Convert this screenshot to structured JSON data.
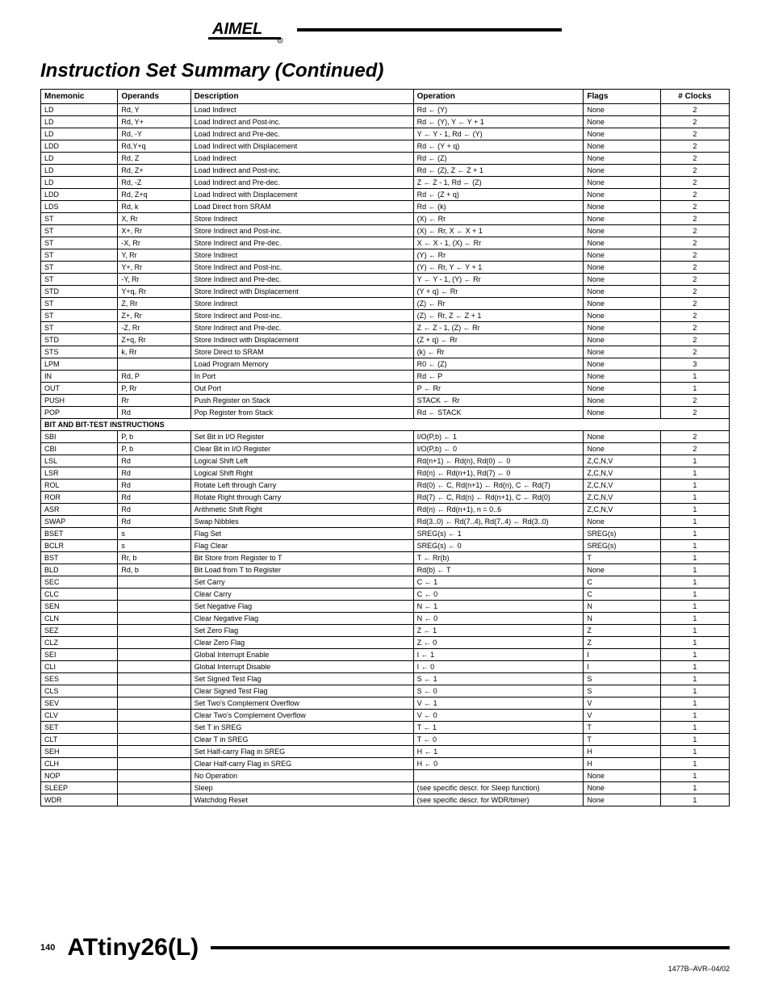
{
  "header": {
    "logo_alt": "ATMEL"
  },
  "title": "Instruction Set Summary  (Continued)",
  "columns": [
    "Mnemonic",
    "Operands",
    "Description",
    "Operation",
    "Flags",
    "# Clocks"
  ],
  "rows": [
    {
      "m": "LD",
      "o": "Rd, Y",
      "d": "Load Indirect",
      "p": "Rd ← (Y)",
      "f": "None",
      "c": "2"
    },
    {
      "m": "LD",
      "o": "Rd, Y+",
      "d": "Load Indirect and Post-inc.",
      "p": "Rd ← (Y), Y ← Y + 1",
      "f": "None",
      "c": "2"
    },
    {
      "m": "LD",
      "o": "Rd, -Y",
      "d": "Load Indirect and Pre-dec.",
      "p": "Y ← Y - 1, Rd ← (Y)",
      "f": "None",
      "c": "2"
    },
    {
      "m": "LDD",
      "o": "Rd,Y+q",
      "d": "Load Indirect with Displacement",
      "p": "Rd ← (Y + q)",
      "f": "None",
      "c": "2"
    },
    {
      "m": "LD",
      "o": "Rd, Z",
      "d": "Load Indirect",
      "p": "Rd ← (Z)",
      "f": "None",
      "c": "2"
    },
    {
      "m": "LD",
      "o": "Rd, Z+",
      "d": "Load Indirect and Post-inc.",
      "p": "Rd ← (Z), Z ← Z + 1",
      "f": "None",
      "c": "2"
    },
    {
      "m": "LD",
      "o": "Rd, -Z",
      "d": "Load Indirect and Pre-dec.",
      "p": "Z ← Z - 1, Rd ← (Z)",
      "f": "None",
      "c": "2"
    },
    {
      "m": "LDD",
      "o": "Rd, Z+q",
      "d": "Load Indirect with Displacement",
      "p": "Rd ← (Z + q)",
      "f": "None",
      "c": "2"
    },
    {
      "m": "LDS",
      "o": "Rd, k",
      "d": "Load Direct from SRAM",
      "p": "Rd ← (k)",
      "f": "None",
      "c": "2"
    },
    {
      "m": "ST",
      "o": "X, Rr",
      "d": "Store Indirect",
      "p": "(X) ← Rr",
      "f": "None",
      "c": "2"
    },
    {
      "m": "ST",
      "o": "X+, Rr",
      "d": "Store Indirect and Post-inc.",
      "p": "(X) ← Rr, X ← X + 1",
      "f": "None",
      "c": "2"
    },
    {
      "m": "ST",
      "o": "-X, Rr",
      "d": "Store Indirect and Pre-dec.",
      "p": "X ← X - 1, (X) ← Rr",
      "f": "None",
      "c": "2"
    },
    {
      "m": "ST",
      "o": "Y, Rr",
      "d": "Store Indirect",
      "p": "(Y) ← Rr",
      "f": "None",
      "c": "2"
    },
    {
      "m": "ST",
      "o": "Y+, Rr",
      "d": "Store Indirect and Post-inc.",
      "p": "(Y) ← Rr, Y ← Y + 1",
      "f": "None",
      "c": "2"
    },
    {
      "m": "ST",
      "o": "-Y, Rr",
      "d": "Store Indirect and Pre-dec.",
      "p": "Y ← Y - 1, (Y) ← Rr",
      "f": "None",
      "c": "2"
    },
    {
      "m": "STD",
      "o": "Y+q, Rr",
      "d": "Store Indirect with Displacement",
      "p": "(Y + q) ← Rr",
      "f": "None",
      "c": "2"
    },
    {
      "m": "ST",
      "o": "Z, Rr",
      "d": "Store Indirect",
      "p": "(Z) ← Rr",
      "f": "None",
      "c": "2"
    },
    {
      "m": "ST",
      "o": "Z+, Rr",
      "d": "Store Indirect and Post-inc.",
      "p": "(Z) ← Rr, Z ← Z + 1",
      "f": "None",
      "c": "2"
    },
    {
      "m": "ST",
      "o": "-Z, Rr",
      "d": "Store Indirect and Pre-dec.",
      "p": "Z ← Z - 1, (Z) ← Rr",
      "f": "None",
      "c": "2"
    },
    {
      "m": "STD",
      "o": "Z+q, Rr",
      "d": "Store Indirect with Displacement",
      "p": "(Z + q) ← Rr",
      "f": "None",
      "c": "2"
    },
    {
      "m": "STS",
      "o": "k, Rr",
      "d": "Store Direct to SRAM",
      "p": "(k) ← Rr",
      "f": "None",
      "c": "2"
    },
    {
      "m": "LPM",
      "o": "",
      "d": "Load Program Memory",
      "p": "R0 ← (Z)",
      "f": "None",
      "c": "3"
    },
    {
      "m": "IN",
      "o": "Rd, P",
      "d": "In Port",
      "p": "Rd ← P",
      "f": "None",
      "c": "1"
    },
    {
      "m": "OUT",
      "o": "P, Rr",
      "d": "Out Port",
      "p": "P ← Rr",
      "f": "None",
      "c": "1"
    },
    {
      "m": "PUSH",
      "o": "Rr",
      "d": "Push Register on Stack",
      "p": "STACK ← Rr",
      "f": "None",
      "c": "2"
    },
    {
      "m": "POP",
      "o": "Rd",
      "d": "Pop Register from Stack",
      "p": "Rd ← STACK",
      "f": "None",
      "c": "2"
    }
  ],
  "section2": "BIT AND BIT-TEST INSTRUCTIONS",
  "rows2": [
    {
      "m": "SBI",
      "o": "P, b",
      "d": "Set Bit in I/O Register",
      "p": "I/O(P,b) ← 1",
      "f": "None",
      "c": "2"
    },
    {
      "m": "CBI",
      "o": "P, b",
      "d": "Clear Bit in I/O Register",
      "p": "I/O(P,b) ← 0",
      "f": "None",
      "c": "2"
    },
    {
      "m": "LSL",
      "o": "Rd",
      "d": "Logical Shift Left",
      "p": "Rd(n+1) ← Rd(n), Rd(0) ← 0",
      "f": "Z,C,N,V",
      "c": "1"
    },
    {
      "m": "LSR",
      "o": "Rd",
      "d": "Logical Shift Right",
      "p": "Rd(n) ← Rd(n+1), Rd(7) ← 0",
      "f": "Z,C,N,V",
      "c": "1"
    },
    {
      "m": "ROL",
      "o": "Rd",
      "d": "Rotate Left through Carry",
      "p": "Rd(0) ← C, Rd(n+1) ← Rd(n), C ← Rd(7)",
      "f": "Z,C,N,V",
      "c": "1"
    },
    {
      "m": "ROR",
      "o": "Rd",
      "d": "Rotate Right through Carry",
      "p": "Rd(7) ← C, Rd(n) ← Rd(n+1), C ← Rd(0)",
      "f": "Z,C,N,V",
      "c": "1"
    },
    {
      "m": "ASR",
      "o": "Rd",
      "d": "Arithmetic Shift Right",
      "p": "Rd(n) ← Rd(n+1), n = 0..6",
      "f": "Z,C,N,V",
      "c": "1"
    },
    {
      "m": "SWAP",
      "o": "Rd",
      "d": "Swap Nibbles",
      "p": "Rd(3..0) ← Rd(7..4), Rd(7..4) ← Rd(3..0)",
      "f": "None",
      "c": "1"
    },
    {
      "m": "BSET",
      "o": "s",
      "d": "Flag Set",
      "p": "SREG(s) ← 1",
      "f": "SREG(s)",
      "c": "1"
    },
    {
      "m": "BCLR",
      "o": "s",
      "d": "Flag Clear",
      "p": "SREG(s) ← 0",
      "f": "SREG(s)",
      "c": "1"
    },
    {
      "m": "BST",
      "o": "Rr, b",
      "d": "Bit Store from Register to T",
      "p": "T ← Rr(b)",
      "f": "T",
      "c": "1"
    },
    {
      "m": "BLD",
      "o": "Rd, b",
      "d": "Bit Load from T to Register",
      "p": "Rd(b) ← T",
      "f": "None",
      "c": "1"
    },
    {
      "m": "SEC",
      "o": "",
      "d": "Set Carry",
      "p": "C ← 1",
      "f": "C",
      "c": "1"
    },
    {
      "m": "CLC",
      "o": "",
      "d": "Clear Carry",
      "p": "C ← 0",
      "f": "C",
      "c": "1"
    },
    {
      "m": "SEN",
      "o": "",
      "d": "Set Negative Flag",
      "p": "N ← 1",
      "f": "N",
      "c": "1"
    },
    {
      "m": "CLN",
      "o": "",
      "d": "Clear Negative Flag",
      "p": "N ← 0",
      "f": "N",
      "c": "1"
    },
    {
      "m": "SEZ",
      "o": "",
      "d": "Set Zero Flag",
      "p": "Z ← 1",
      "f": "Z",
      "c": "1"
    },
    {
      "m": "CLZ",
      "o": "",
      "d": "Clear Zero Flag",
      "p": "Z ← 0",
      "f": "Z",
      "c": "1"
    },
    {
      "m": "SEI",
      "o": "",
      "d": "Global Interrupt Enable",
      "p": "I ← 1",
      "f": "I",
      "c": "1"
    },
    {
      "m": "CLI",
      "o": "",
      "d": "Global Interrupt Disable",
      "p": "I ← 0",
      "f": "I",
      "c": "1"
    },
    {
      "m": "SES",
      "o": "",
      "d": "Set Signed Test Flag",
      "p": "S ← 1",
      "f": "S",
      "c": "1"
    },
    {
      "m": "CLS",
      "o": "",
      "d": "Clear Signed Test Flag",
      "p": "S ← 0",
      "f": "S",
      "c": "1"
    },
    {
      "m": "SEV",
      "o": "",
      "d": "Set Two's Complement Overflow",
      "p": "V ← 1",
      "f": "V",
      "c": "1"
    },
    {
      "m": "CLV",
      "o": "",
      "d": "Clear Two's Complement Overflow",
      "p": "V ← 0",
      "f": "V",
      "c": "1"
    },
    {
      "m": "SET",
      "o": "",
      "d": "Set T in SREG",
      "p": "T ← 1",
      "f": "T",
      "c": "1"
    },
    {
      "m": "CLT",
      "o": "",
      "d": "Clear T in SREG",
      "p": "T ← 0",
      "f": "T",
      "c": "1"
    },
    {
      "m": "SEH",
      "o": "",
      "d": "Set Half-carry Flag in SREG",
      "p": "H ← 1",
      "f": "H",
      "c": "1"
    },
    {
      "m": "CLH",
      "o": "",
      "d": "Clear Half-carry Flag in SREG",
      "p": "H ← 0",
      "f": "H",
      "c": "1"
    },
    {
      "m": "NOP",
      "o": "",
      "d": "No Operation",
      "p": "",
      "f": "None",
      "c": "1"
    },
    {
      "m": "SLEEP",
      "o": "",
      "d": "Sleep",
      "p": "(see specific descr. for Sleep function)",
      "f": "None",
      "c": "1"
    },
    {
      "m": "WDR",
      "o": "",
      "d": "Watchdog Reset",
      "p": "(see specific descr. for WDR/timer)",
      "f": "None",
      "c": "1"
    }
  ],
  "footer": {
    "page": "140",
    "product": "ATtiny26(L)",
    "docnum": "1477B–AVR–04/02"
  }
}
